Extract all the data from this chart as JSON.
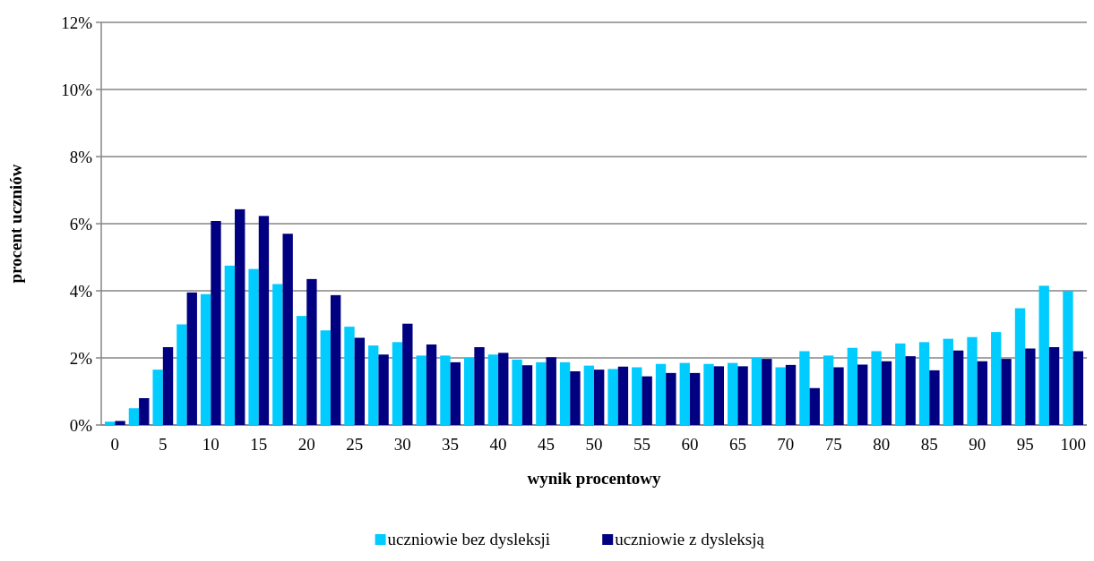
{
  "chart_data": {
    "type": "bar",
    "xlabel": "wynik procentowy",
    "ylabel": "procent uczniów",
    "categories": [
      "0",
      null,
      "5",
      null,
      "10",
      null,
      "15",
      null,
      "20",
      null,
      "25",
      null,
      "30",
      null,
      "35",
      null,
      "40",
      null,
      "45",
      null,
      "50",
      null,
      "55",
      null,
      "60",
      null,
      "65",
      null,
      "70",
      null,
      "75",
      null,
      "80",
      null,
      "85",
      null,
      "90",
      null,
      "95",
      null,
      "100"
    ],
    "series": [
      {
        "name": "uczniowie bez dysleksji",
        "color": "#00ccff",
        "values": [
          0.1,
          0.5,
          1.65,
          3.0,
          3.9,
          4.75,
          4.65,
          4.2,
          3.25,
          2.82,
          2.93,
          2.37,
          2.47,
          2.07,
          2.07,
          2.0,
          2.1,
          1.95,
          1.87,
          1.87,
          1.77,
          1.67,
          1.72,
          1.82,
          1.85,
          1.82,
          1.85,
          2.0,
          1.72,
          2.2,
          2.07,
          2.3,
          2.2,
          2.43,
          2.47,
          2.57,
          2.62,
          2.77,
          3.48,
          4.15,
          4.0
        ]
      },
      {
        "name": "uczniowie z dysleksją",
        "color": "#000080",
        "values": [
          0.12,
          0.8,
          2.32,
          3.95,
          6.08,
          6.43,
          6.23,
          5.7,
          4.35,
          3.87,
          2.6,
          2.1,
          3.02,
          2.4,
          1.87,
          2.32,
          2.15,
          1.78,
          2.02,
          1.6,
          1.65,
          1.74,
          1.45,
          1.55,
          1.55,
          1.75,
          1.75,
          1.97,
          1.79,
          1.1,
          1.72,
          1.8,
          1.9,
          2.05,
          1.63,
          2.22,
          1.9,
          1.97,
          2.28,
          2.32,
          2.2
        ]
      }
    ],
    "ylim": [
      0,
      12
    ],
    "yticks": [
      {
        "value": 0,
        "label": "0%"
      },
      {
        "value": 2,
        "label": "2%"
      },
      {
        "value": 4,
        "label": "4%"
      },
      {
        "value": 6,
        "label": "6%"
      },
      {
        "value": 8,
        "label": "8%"
      },
      {
        "value": 10,
        "label": "10%"
      },
      {
        "value": 12,
        "label": "12%"
      }
    ],
    "grid": "y",
    "legend": "bottom"
  }
}
